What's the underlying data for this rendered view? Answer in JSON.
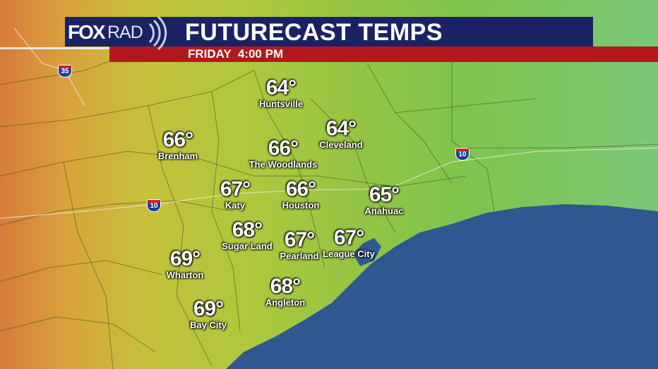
{
  "header": {
    "logo": "FOXRAD",
    "title": "FUTURECAST TEMPS",
    "subtitle": "FRIDAY  4:00 PM"
  },
  "unit": "°F",
  "cities": [
    {
      "name": "Huntsville",
      "temp": "64°"
    },
    {
      "name": "Cleveland",
      "temp": "64°"
    },
    {
      "name": "Brenham",
      "temp": "66°"
    },
    {
      "name": "The Woodlands",
      "temp": "66°"
    },
    {
      "name": "Katy",
      "temp": "67°"
    },
    {
      "name": "Houston",
      "temp": "66°"
    },
    {
      "name": "Anahuac",
      "temp": "65°"
    },
    {
      "name": "Sugar Land",
      "temp": "68°"
    },
    {
      "name": "Pearland",
      "temp": "67°"
    },
    {
      "name": "League City",
      "temp": "67°"
    },
    {
      "name": "Wharton",
      "temp": "69°"
    },
    {
      "name": "Angleton",
      "temp": "68°"
    },
    {
      "name": "Bay City",
      "temp": "69°"
    }
  ],
  "interstates": [
    "35",
    "10",
    "10"
  ],
  "colors": {
    "banner_navy": "#1b2263",
    "banner_red": "#b3191c",
    "gulf": "#2f5791",
    "warm": "#d77b3a",
    "cool": "#7fc44c"
  }
}
